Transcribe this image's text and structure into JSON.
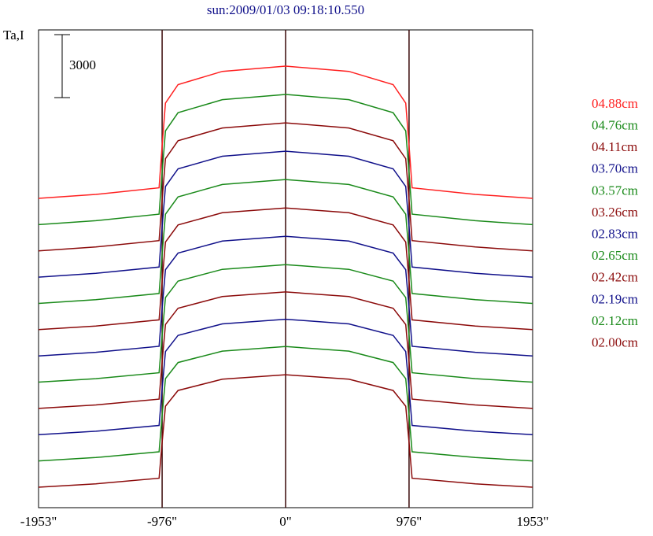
{
  "chart_data": {
    "type": "line",
    "title": "sun:2009/01/03 09:18:10.550",
    "ylabel": "Ta,I",
    "scale_bar": 3000,
    "x": [
      -1953,
      -1500,
      -1000,
      -976,
      -950,
      -850,
      -500,
      0,
      500,
      850,
      950,
      976,
      1000,
      1500,
      1953
    ],
    "xlim": [
      -1953,
      1953
    ],
    "xticks": [
      {
        "value": -1953,
        "label": "-1953\""
      },
      {
        "value": -976,
        "label": "-976\""
      },
      {
        "value": 0,
        "label": "0\""
      },
      {
        "value": 976,
        "label": "976\""
      },
      {
        "value": 1953,
        "label": "1953\""
      }
    ],
    "grid_color": "#3a0a0a",
    "series": [
      {
        "name": "04.88cm",
        "color": "#ff2020",
        "values": [
          0,
          189,
          504,
          2520,
          4536,
          5418,
          6048,
          6300,
          6048,
          5418,
          4536,
          2520,
          504,
          189,
          0
        ]
      },
      {
        "name": "04.76cm",
        "color": "#1a8a1a",
        "values": [
          0,
          186,
          496,
          2480,
          4464,
          5332,
          5952,
          6200,
          5952,
          5332,
          4464,
          2480,
          496,
          186,
          0
        ]
      },
      {
        "name": "04.11cm",
        "color": "#8b0a0a",
        "values": [
          0,
          183,
          488,
          2440,
          4392,
          5246,
          5856,
          6100,
          5856,
          5246,
          4392,
          2440,
          488,
          183,
          0
        ]
      },
      {
        "name": "03.70cm",
        "color": "#10108a",
        "values": [
          0,
          180,
          480,
          2400,
          4320,
          5160,
          5760,
          6000,
          5760,
          5160,
          4320,
          2400,
          480,
          180,
          0
        ]
      },
      {
        "name": "03.57cm",
        "color": "#1a8a1a",
        "values": [
          0,
          177,
          472,
          2360,
          4248,
          5074,
          5664,
          5900,
          5664,
          5074,
          4248,
          2360,
          472,
          177,
          0
        ]
      },
      {
        "name": "03.26cm",
        "color": "#8b0a0a",
        "values": [
          0,
          174,
          464,
          2320,
          4176,
          4988,
          5568,
          5800,
          5568,
          4988,
          4176,
          2320,
          464,
          174,
          0
        ]
      },
      {
        "name": "02.83cm",
        "color": "#10108a",
        "values": [
          0,
          171,
          456,
          2280,
          4104,
          4902,
          5472,
          5700,
          5472,
          4902,
          4104,
          2280,
          456,
          171,
          0
        ]
      },
      {
        "name": "02.65cm",
        "color": "#1a8a1a",
        "values": [
          0,
          168,
          448,
          2240,
          4032,
          4816,
          5376,
          5600,
          5376,
          4816,
          4032,
          2240,
          448,
          168,
          0
        ]
      },
      {
        "name": "02.42cm",
        "color": "#8b0a0a",
        "values": [
          0,
          167,
          444,
          2220,
          3996,
          4773,
          5328,
          5550,
          5328,
          4773,
          3996,
          2220,
          444,
          167,
          0
        ]
      },
      {
        "name": "02.19cm",
        "color": "#10108a",
        "values": [
          0,
          165,
          440,
          2200,
          3960,
          4730,
          5280,
          5500,
          5280,
          4730,
          3960,
          2200,
          440,
          165,
          0
        ]
      },
      {
        "name": "02.12cm",
        "color": "#1a8a1a",
        "values": [
          0,
          164,
          436,
          2180,
          3924,
          4687,
          5232,
          5450,
          5232,
          4687,
          3924,
          2180,
          436,
          164,
          0
        ]
      },
      {
        "name": "02.00cm",
        "color": "#8b0a0a",
        "values": [
          0,
          161,
          429,
          2144,
          3859,
          4610,
          5146,
          5360,
          5146,
          4610,
          3859,
          2144,
          429,
          161,
          0
        ]
      }
    ]
  }
}
